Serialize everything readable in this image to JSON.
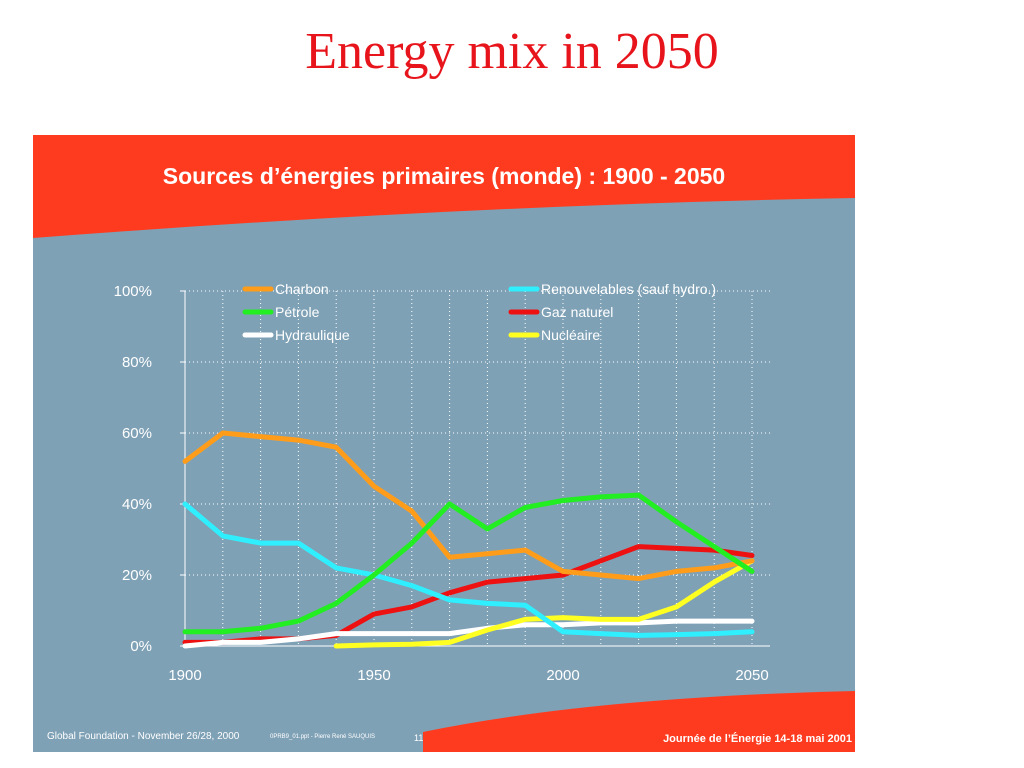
{
  "page": {
    "title": "Energy mix in 2050"
  },
  "footer": {
    "left": "Global Foundation - November 26/28, 2000",
    "file": "0PRB9_01.ppt - Pierre René SAUQUIS",
    "page": "11",
    "right": "Journée de l’Énergie 14-18 mai 2001"
  },
  "colors": {
    "title": "#e8141b",
    "banner": "#ff3b1f",
    "panel": "#7fa1b6"
  },
  "chart_data": {
    "type": "line",
    "title": "Sources d’énergies primaires (monde) : 1900 - 2050",
    "xlabel": "",
    "ylabel": "",
    "xlim": [
      1900,
      2050
    ],
    "ylim": [
      0,
      100
    ],
    "x_ticks": [
      "1900",
      "1950",
      "2000",
      "2050"
    ],
    "y_ticks": [
      "0%",
      "20%",
      "40%",
      "60%",
      "80%",
      "100%"
    ],
    "grid": true,
    "legend_position": "top",
    "series": [
      {
        "name": "Charbon",
        "color": "#ff9d1b",
        "x": [
          1900,
          1910,
          1920,
          1930,
          1940,
          1950,
          1960,
          1970,
          1980,
          1990,
          2000,
          2010,
          2020,
          2030,
          2040,
          2050
        ],
        "y": [
          52,
          60,
          59,
          58,
          56,
          45,
          38,
          25,
          26,
          27,
          21,
          20,
          19,
          21,
          22,
          24
        ]
      },
      {
        "name": "Renouvelables (sauf hydro.)",
        "color": "#2fefff",
        "x": [
          1900,
          1910,
          1920,
          1930,
          1940,
          1950,
          1960,
          1970,
          1980,
          1990,
          2000,
          2010,
          2020,
          2030,
          2040,
          2050
        ],
        "y": [
          40,
          31,
          29,
          29,
          22,
          20,
          17,
          13,
          12,
          11.5,
          4,
          3.5,
          3,
          3.2,
          3.5,
          4
        ]
      },
      {
        "name": "Pétrole",
        "color": "#22ee22",
        "x": [
          1900,
          1910,
          1920,
          1930,
          1940,
          1950,
          1960,
          1970,
          1980,
          1990,
          2000,
          2010,
          2020,
          2030,
          2040,
          2050
        ],
        "y": [
          4,
          4,
          5,
          7,
          12,
          20,
          29,
          40,
          33,
          39,
          41,
          42,
          42.5,
          35,
          28,
          21
        ]
      },
      {
        "name": "Gaz naturel",
        "color": "#ee1111",
        "x": [
          1900,
          1910,
          1920,
          1930,
          1940,
          1950,
          1960,
          1970,
          1980,
          1990,
          2000,
          2010,
          2020,
          2030,
          2040,
          2050
        ],
        "y": [
          1,
          1,
          2,
          2,
          3,
          9,
          11,
          15,
          18,
          19,
          20,
          24,
          28,
          27.5,
          27,
          25.5
        ]
      },
      {
        "name": "Hydraulique",
        "color": "#ffffff",
        "x": [
          1900,
          1910,
          1920,
          1930,
          1940,
          1950,
          1960,
          1970,
          1980,
          1990,
          2000,
          2010,
          2020,
          2030,
          2040,
          2050
        ],
        "y": [
          0,
          1,
          1,
          2,
          3.5,
          3.5,
          3.5,
          3.5,
          5,
          6,
          6,
          6.5,
          6.5,
          7,
          7,
          7
        ]
      },
      {
        "name": "Nucléaire",
        "color": "#ffff22",
        "x": [
          1940,
          1950,
          1960,
          1970,
          1980,
          1990,
          2000,
          2010,
          2020,
          2030,
          2040,
          2050
        ],
        "y": [
          0,
          0.3,
          0.5,
          1,
          4.5,
          7.5,
          8,
          7.5,
          7.5,
          11,
          18,
          24
        ]
      }
    ]
  }
}
